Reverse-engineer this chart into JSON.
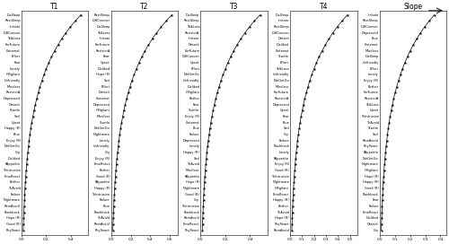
{
  "panels": [
    {
      "title": "T1",
      "labels": [
        "DisSleep",
        "RestSleep",
        "Irritate",
        "DiffConcen",
        "TalkLess",
        "ForFuture",
        "LInterest",
        "Effort",
        "Fear",
        "Lonely",
        "HVigilant",
        "Unfriendly",
        "Mindless",
        "RestrictA",
        "Depressed",
        "Detach",
        "Startle",
        "Sad",
        "Upset",
        "Happy (R)",
        "Blue",
        "Enjoy (R)",
        "NotGetGo",
        "Cry",
        "Disliked",
        "PAppetite",
        "ThIntrusive",
        "EmoReact",
        "Bother",
        "ThAvoid",
        "Failure",
        "Nightmare",
        "RemAvoid",
        "Flashback",
        "Hope (R)",
        "Good (R)",
        "PhyReact"
      ],
      "max_val": 0.48,
      "xlim": [
        0.0,
        0.54
      ],
      "xticks": [
        0.0,
        0.2,
        0.4
      ],
      "xtick_labels": [
        "0.0",
        "0.2",
        "0.4"
      ]
    },
    {
      "title": "T2",
      "labels": [
        "RestSleep",
        "DiffConcen",
        "DisSleep",
        "TalkLess",
        "Irritate",
        "ForFuture",
        "RestrictA",
        "Fear",
        "Upset",
        "Disliked",
        "Hope (R)",
        "Sad",
        "Effort",
        "Detach",
        "LInterest",
        "Depressed",
        "HVigilant",
        "Mindless",
        "Startle",
        "NotGetGo",
        "Nightmare",
        "Lonely",
        "Unfriendly",
        "Cry",
        "Enjoy (R)",
        "EmoReact",
        "Bother",
        "Good (R)",
        "PAppetite",
        "Happy (R)",
        "ThIntrusive",
        "Failure",
        "Blue",
        "Flashback",
        "ThAvoid",
        "RemAvoid",
        "PhyReact"
      ],
      "max_val": 0.62,
      "xlim": [
        0.0,
        0.68
      ],
      "xticks": [
        0.0,
        0.2,
        0.4,
        0.6
      ],
      "xtick_labels": [
        "0.0",
        "0.2",
        "0.4",
        "0.6"
      ]
    },
    {
      "title": "T3",
      "labels": [
        "DisSleep",
        "RestSleep",
        "TalkLess",
        "RestrictA",
        "Irritate",
        "Detach",
        "ForFuture",
        "DiffConcen",
        "Upset",
        "Effort",
        "NotGetGo",
        "Unfriendly",
        "Disliked",
        "HVigilant",
        "Bother",
        "Fear",
        "Startle",
        "Enjoy (R)",
        "LInterest",
        "Blue",
        "Failure",
        "Depressed",
        "Lonely",
        "Happy (R)",
        "Sad",
        "ThAvoid",
        "Mindless",
        "PAppetite",
        "Hope (R)",
        "Nightmare",
        "Good (R)",
        "Cry",
        "ThIntrusive",
        "Flashback",
        "RemAvoid",
        "EmoReact",
        "PhyReact"
      ],
      "max_val": 0.48,
      "xlim": [
        0.0,
        0.54
      ],
      "xticks": [
        0.0,
        0.2,
        0.4
      ],
      "xtick_labels": [
        "0.0",
        "0.2",
        "0.4"
      ]
    },
    {
      "title": "T4",
      "labels": [
        "DisSleep",
        "Irritate",
        "RestSleep",
        "DiffConcen",
        "Detach",
        "Disliked",
        "LInterest",
        "Startle",
        "Effort",
        "TalkLess",
        "Unfriendly",
        "NotGetGo",
        "Mindless",
        "ForFuture",
        "RestrictA",
        "Depressed",
        "Upset",
        "Fear",
        "Blue",
        "Sad",
        "Cry",
        "Failure",
        "Flashback",
        "Lonely",
        "PAppetite",
        "Enjoy (R)",
        "Good (R)",
        "ThIntrusive",
        "Nightmare",
        "HVigilant",
        "EmoReact",
        "Happy (R)",
        "Bother",
        "ThAvoid",
        "Hope (R)",
        "PhyReact",
        "RemAvoid"
      ],
      "max_val": 0.48,
      "xlim": [
        0.0,
        0.56
      ],
      "xticks": [
        0.0,
        0.1,
        0.2,
        0.3,
        0.4,
        0.5
      ],
      "xtick_labels": [
        "0.0",
        "0.1",
        "0.2",
        "0.3",
        "0.4",
        "0.5"
      ]
    },
    {
      "title": "Slope",
      "labels": [
        "Irritate",
        "RestSleep",
        "DiffConcen",
        "Depressed",
        "Blue",
        "LInterest",
        "Mindless",
        "DisSleep",
        "Unfriendly",
        "Effort",
        "Lonely",
        "Enjoy (R)",
        "Bother",
        "ForFuture",
        "RestrictA",
        "TalkLess",
        "Upset",
        "ThIntrusive",
        "ThAvoid",
        "Startle",
        "Sad",
        "RemAvoid",
        "PhyReact",
        "PAppetite",
        "NotGetGo",
        "Nightmare",
        "HVigilant",
        "Hope (R)",
        "Happy (R)",
        "Good (R)",
        "Flashback",
        "Fear",
        "Failure",
        "EmoReact",
        "Disliked",
        "Detach",
        "Cry"
      ],
      "max_val": 0.36,
      "xlim": [
        0.0,
        0.44
      ],
      "xticks": [
        0.0,
        0.1,
        0.2,
        0.3,
        0.4
      ],
      "xtick_labels": [
        "0.0",
        "0.1",
        "0.2",
        "0.3",
        "0.4"
      ]
    }
  ]
}
